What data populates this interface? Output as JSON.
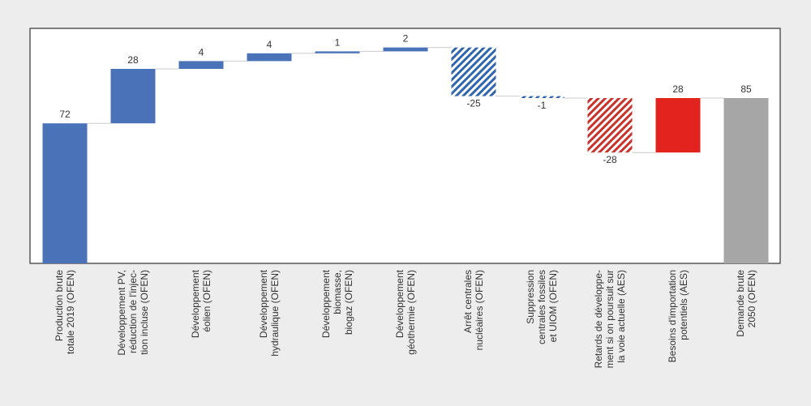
{
  "chart_data": {
    "type": "waterfall",
    "categories": [
      [
        "Production brute",
        "totale 2019 (OFEN)"
      ],
      [
        "Développement PV,",
        "réduction de l'injec-",
        "tion incluse (OFEN)"
      ],
      [
        "Développement",
        "éolien (OFEN)"
      ],
      [
        "Développement",
        "hydraulique (OFEN)"
      ],
      [
        "Développement",
        "biomasse,",
        "biogaz (OFEN)"
      ],
      [
        "Développement",
        "géothermie (OFEN)"
      ],
      [
        "Arrêt centrales",
        "nucléaires (OFEN)"
      ],
      [
        "Suppression",
        "centrales fossiles",
        "et UIOM (OFEN)"
      ],
      [
        "Retards de développe-",
        "ment si on poursuit sur",
        "la voie actuelle (AES)"
      ],
      [
        "Besoins d'importation",
        "potentiels (AES)"
      ],
      [
        "Demande brute",
        "2050 (OFEN)"
      ]
    ],
    "values": [
      72,
      28,
      4,
      4,
      1,
      2,
      -25,
      -1,
      -28,
      28,
      85
    ],
    "is_total": [
      true,
      false,
      false,
      false,
      false,
      false,
      false,
      false,
      false,
      false,
      true
    ],
    "colors": [
      "#4a72b8",
      "#4a72b8",
      "#4a72b8",
      "#4a72b8",
      "#4a72b8",
      "#4a72b8",
      "#2f65ad",
      "#2f65ad",
      "#c8322b",
      "#e3241e",
      "#a6a6a6"
    ],
    "hatched": [
      false,
      false,
      false,
      false,
      false,
      false,
      true,
      true,
      true,
      false,
      false
    ],
    "ylim": [
      0,
      120
    ]
  }
}
